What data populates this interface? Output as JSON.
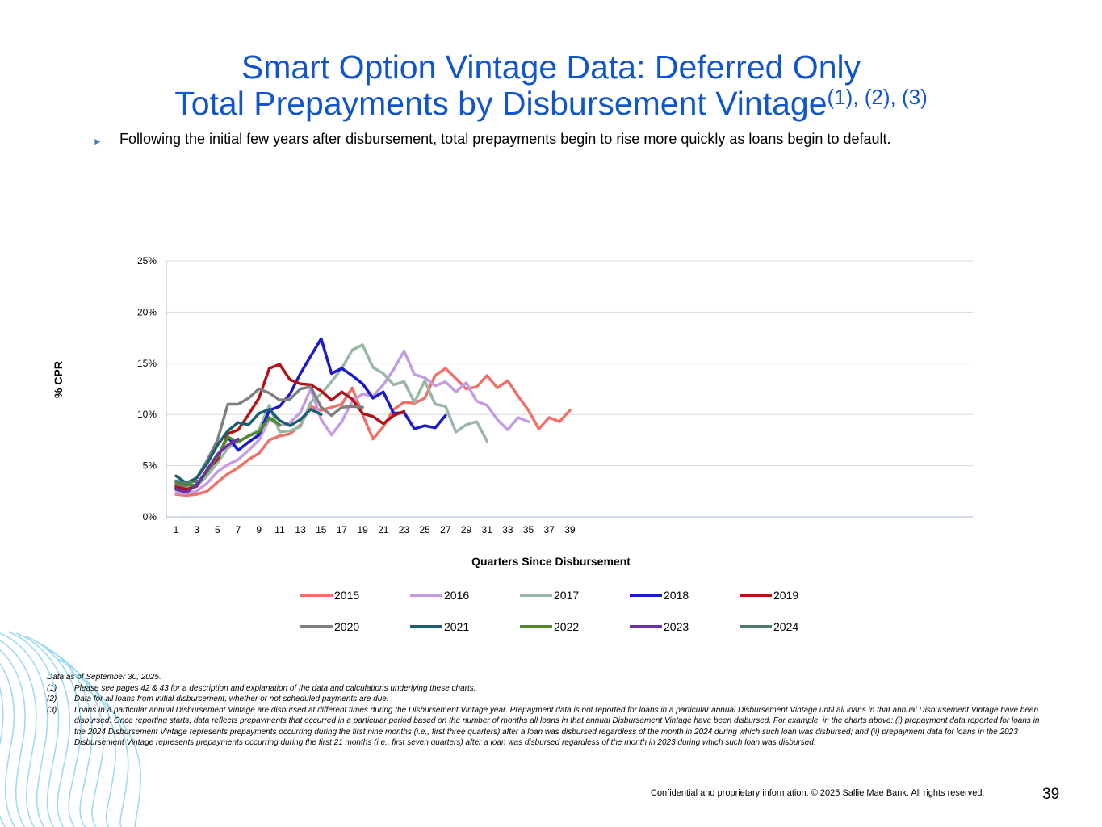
{
  "title": {
    "line1": "Smart Option Vintage Data: Deferred Only",
    "line2": "Total Prepayments by Disbursement Vintage",
    "superscript": "(1), (2), (3)"
  },
  "bullet": "Following the initial few years after disbursement, total prepayments begin to rise more quickly as loans begin to default.",
  "chart_data": {
    "type": "line",
    "title": "",
    "xlabel": "Quarters Since Disbursement",
    "ylabel": "% CPR",
    "xlim": [
      1,
      39
    ],
    "ylim": [
      0,
      25
    ],
    "yticks": [
      "0%",
      "5%",
      "10%",
      "15%",
      "20%",
      "25%"
    ],
    "xticks": [
      "1",
      "3",
      "5",
      "7",
      "9",
      "11",
      "13",
      "15",
      "17",
      "19",
      "21",
      "23",
      "25",
      "27",
      "29",
      "31",
      "33",
      "35",
      "37",
      "39"
    ],
    "grid": true,
    "legend_position": "bottom",
    "series": [
      {
        "name": "2015",
        "color": "#f07167",
        "values": [
          2.2,
          2.1,
          2.2,
          2.5,
          3.4,
          4.2,
          4.8,
          5.6,
          6.2,
          7.5,
          7.9,
          8.1,
          9.0,
          10.8,
          10.4,
          10.7,
          11.0,
          12.6,
          10.0,
          7.6,
          8.8,
          10.5,
          11.2,
          11.1,
          11.6,
          13.8,
          14.5,
          13.5,
          12.5,
          12.7,
          13.8,
          12.6,
          13.3,
          11.8,
          10.4,
          8.6,
          9.7,
          9.3,
          10.4
        ]
      },
      {
        "name": "2016",
        "color": "#c39ce4",
        "values": [
          2.3,
          2.3,
          2.5,
          3.3,
          4.4,
          5.1,
          5.6,
          6.5,
          7.5,
          9.5,
          8.9,
          9.2,
          10.2,
          12.5,
          9.5,
          8.0,
          9.3,
          11.3,
          12.0,
          11.8,
          12.9,
          14.4,
          16.2,
          13.9,
          13.6,
          12.8,
          13.2,
          12.2,
          13.1,
          11.3,
          10.9,
          9.5,
          8.5,
          9.7,
          9.3
        ]
      },
      {
        "name": "2017",
        "color": "#99b7a7",
        "values": [
          2.6,
          2.5,
          3.0,
          4.0,
          5.3,
          6.7,
          7.4,
          7.9,
          8.5,
          10.9,
          8.3,
          8.4,
          8.8,
          11.2,
          12.0,
          13.2,
          14.5,
          16.3,
          16.8,
          14.6,
          14.0,
          12.9,
          13.2,
          11.2,
          13.3,
          11.0,
          10.8,
          8.3,
          9.0,
          9.3,
          7.4
        ]
      },
      {
        "name": "2018",
        "color": "#1a1acc",
        "values": [
          2.8,
          2.5,
          3.2,
          4.5,
          5.9,
          7.8,
          6.5,
          7.3,
          8.0,
          10.4,
          10.8,
          12.0,
          14.0,
          15.7,
          17.4,
          14.0,
          14.5,
          13.8,
          13.0,
          11.6,
          12.2,
          10.1,
          10.2,
          8.6,
          8.9,
          8.7,
          9.9
        ]
      },
      {
        "name": "2019",
        "color": "#b31217",
        "values": [
          3.0,
          2.7,
          3.0,
          4.6,
          5.6,
          8.1,
          8.5,
          10.0,
          11.6,
          14.5,
          14.9,
          13.4,
          13.0,
          12.9,
          12.3,
          11.4,
          12.2,
          11.5,
          10.1,
          9.8,
          9.1,
          9.9,
          10.3
        ]
      },
      {
        "name": "2020",
        "color": "#7f7f7f",
        "values": [
          3.2,
          3.0,
          3.8,
          5.5,
          7.5,
          11.0,
          11.0,
          11.6,
          12.5,
          12.1,
          11.4,
          11.5,
          12.5,
          12.7,
          10.7,
          9.9,
          10.7,
          10.8,
          10.7
        ]
      },
      {
        "name": "2021",
        "color": "#1a6070",
        "values": [
          4.0,
          3.3,
          3.8,
          5.2,
          7.0,
          8.4,
          9.2,
          9.0,
          10.1,
          10.5,
          9.4,
          8.9,
          9.5,
          10.5,
          10.0
        ]
      },
      {
        "name": "2022",
        "color": "#4e8a2a",
        "values": [
          3.4,
          3.1,
          3.1,
          4.4,
          5.9,
          7.8,
          7.3,
          7.9,
          8.3,
          9.7,
          9.0
        ]
      },
      {
        "name": "2023",
        "color": "#7030a0",
        "values": [
          2.7,
          2.4,
          3.1,
          4.6,
          6.1,
          7.0,
          7.6
        ]
      },
      {
        "name": "2024",
        "color": "#4d7c6a",
        "values": [
          3.5,
          3.3,
          3.5
        ]
      }
    ]
  },
  "notes": {
    "asof": "Data as of  September 30, 2025.",
    "items": [
      {
        "num": "(1)",
        "text": "Please see pages 42 & 43 for a description and explanation of the data and calculations underlying these charts."
      },
      {
        "num": "(2)",
        "text": "Data for all loans from initial disbursement, whether or not scheduled payments are due."
      },
      {
        "num": "(3)",
        "text": "Loans in a particular annual Disbursement Vintage are disbursed at different times during the Disbursement Vintage year.  Prepayment data is not reported for loans in a particular annual Disbursement Vintage until all loans in that annual Disbursement Vintage have been disbursed.  Once reporting starts, data reflects prepayments that occurred in a particular period based on the number of months all loans in that annual Disbursement Vintage have been disbursed.  For example, in the charts above:  (i) prepayment data reported for loans in the 2024 Disbursement Vintage represents prepayments occurring during the first nine months (i.e., first three quarters) after a loan was disbursed regardless of the month in 2024 during which such loan was disbursed; and (ii) prepayment data for loans in the 2023 Disbursement Vintage represents prepayments occurring during the first 21 months (i.e., first seven quarters) after a loan was disbursed regardless of the month in 2023 during which such loan was disbursed."
      }
    ]
  },
  "footer": "Confidential and proprietary information. © 2025 Sallie Mae Bank. All rights reserved.",
  "page_number": "39"
}
